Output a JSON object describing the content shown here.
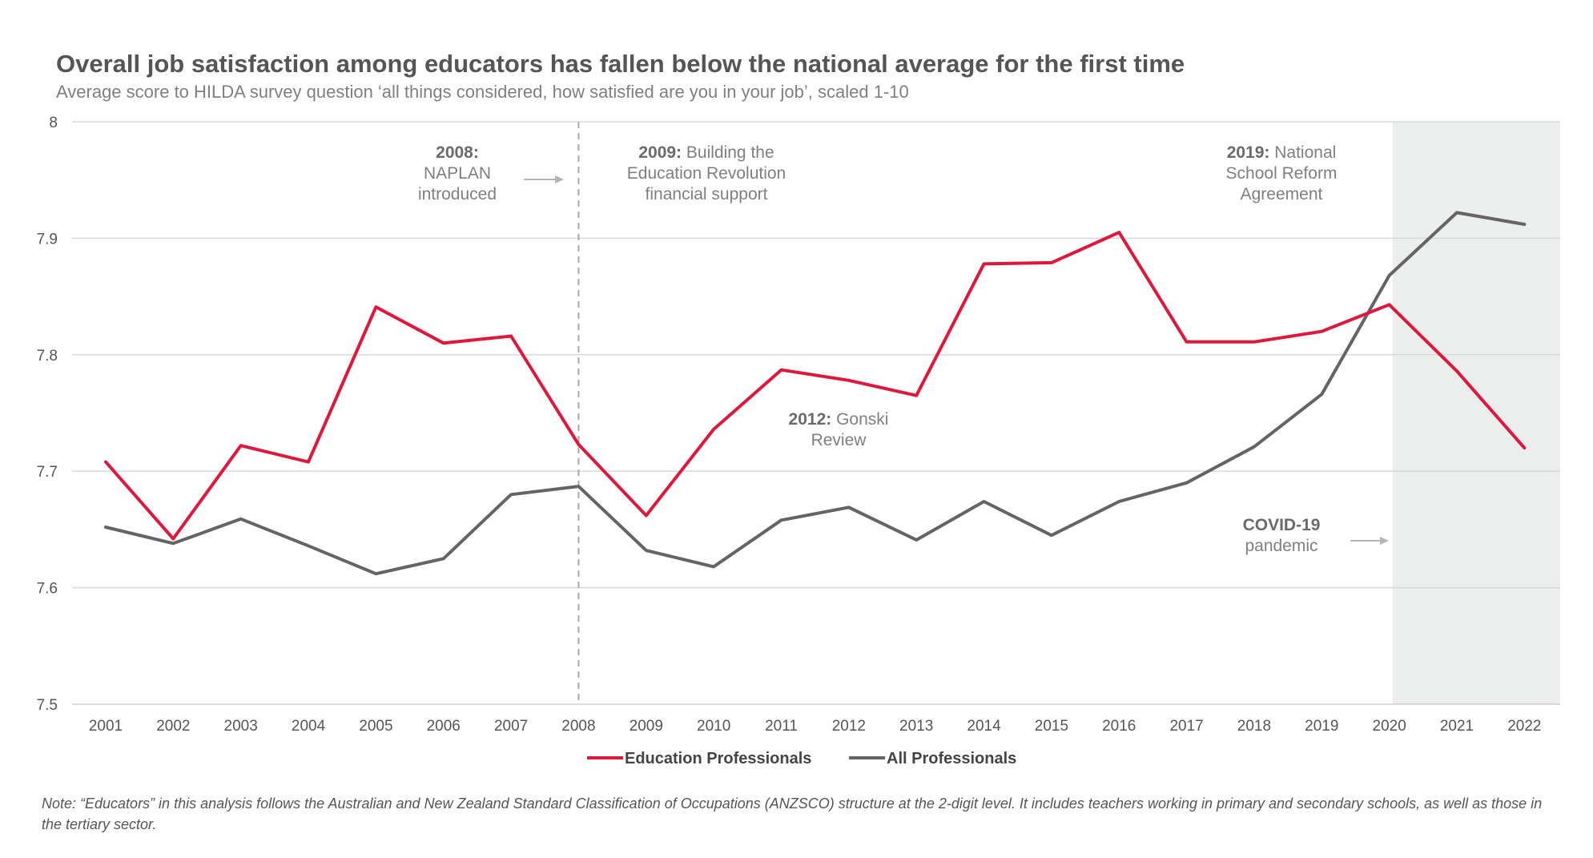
{
  "chart_data": {
    "type": "line",
    "title": "Overall job satisfaction among educators has fallen below the national average for the first time",
    "subtitle": "Average score to HILDA survey question ‘all things considered, how satisfied are you in your job’, scaled 1-10",
    "x": [
      2001,
      2002,
      2003,
      2004,
      2005,
      2006,
      2007,
      2008,
      2009,
      2010,
      2011,
      2012,
      2013,
      2014,
      2015,
      2016,
      2017,
      2018,
      2019,
      2020,
      2021,
      2022
    ],
    "series": [
      {
        "name": "Education Professionals",
        "color": "#e0173a",
        "values": [
          7.708,
          7.642,
          7.722,
          7.708,
          7.841,
          7.81,
          7.816,
          7.723,
          7.662,
          7.736,
          7.787,
          7.778,
          7.765,
          7.878,
          7.879,
          7.905,
          7.811,
          7.811,
          7.82,
          7.843,
          7.786,
          7.72
        ]
      },
      {
        "name": "All Professionals",
        "color": "#646464",
        "values": [
          7.652,
          7.638,
          7.659,
          7.636,
          7.612,
          7.625,
          7.68,
          7.687,
          7.632,
          7.618,
          7.658,
          7.669,
          7.641,
          7.674,
          7.645,
          7.674,
          7.69,
          7.721,
          7.766,
          7.868,
          7.922,
          7.912
        ]
      }
    ],
    "ylim": [
      7.5,
      8.0
    ],
    "yticks": [
      "7.5",
      "7.6",
      "7.7",
      "7.8",
      "7.9",
      "8"
    ],
    "grid": "horizontal",
    "legend_position": "bottom-center",
    "shaded_region": {
      "from": 2020,
      "to": 2022,
      "label": "COVID-19 pandemic",
      "color": "#eceeed"
    },
    "reference_line": {
      "x": 2008,
      "style": "dashed"
    },
    "annotations": [
      {
        "id": "naplan",
        "bold": "2008:",
        "lines": [
          "NAPLAN",
          "introduced"
        ]
      },
      {
        "id": "ber",
        "bold": "2009:",
        "lines": [
          "Building the",
          "Education Revolution",
          "financial support"
        ]
      },
      {
        "id": "gonski",
        "bold": "2012:",
        "lines": [
          "Gonski",
          "Review"
        ]
      },
      {
        "id": "nsra",
        "bold": "2019:",
        "lines": [
          "National",
          "School Reform",
          "Agreement"
        ]
      },
      {
        "id": "covid",
        "bold": "COVID-19",
        "lines": [
          "pandemic"
        ]
      }
    ],
    "note": "Note: “Educators” in this analysis follows the Australian and New Zealand Standard Classification of Occupations (ANZSCO) structure at the 2-digit level. It includes teachers working in primary and secondary schools, as well as those in the tertiary sector."
  }
}
